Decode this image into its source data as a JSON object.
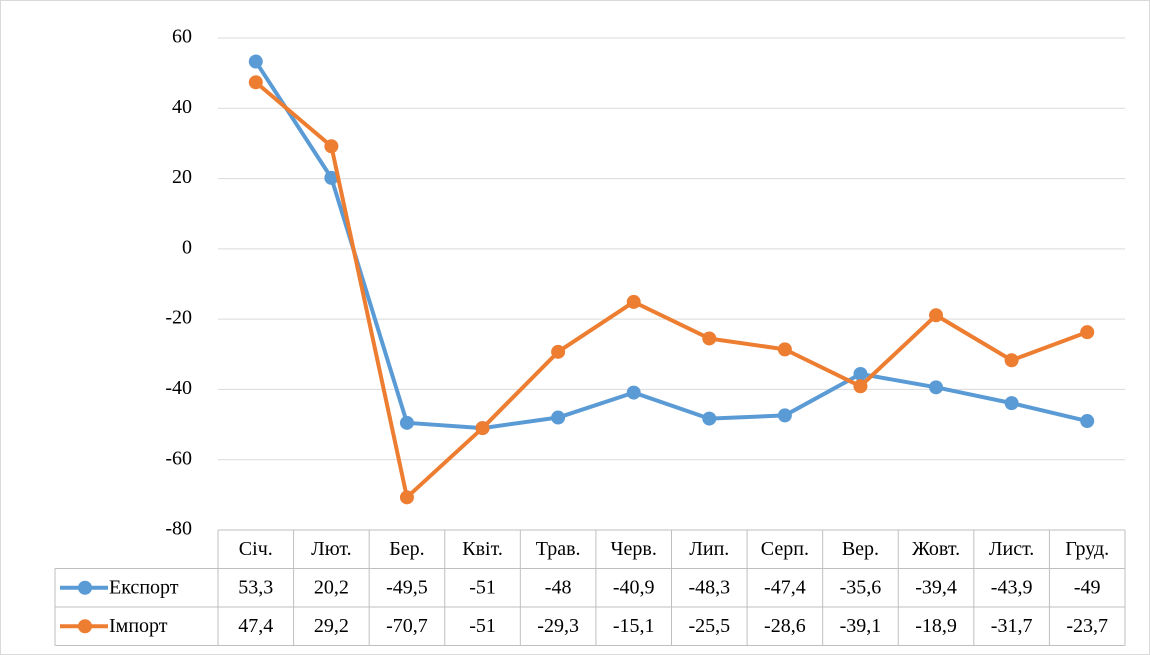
{
  "chart_data": {
    "type": "line",
    "categories": [
      "Січ.",
      "Лют.",
      "Бер.",
      "Квіт.",
      "Трав.",
      "Черв.",
      "Лип.",
      "Серп.",
      "Вер.",
      "Жовт.",
      "Лист.",
      "Груд."
    ],
    "series": [
      {
        "name": "Експорт",
        "color": "#5b9bd5",
        "values": [
          53.3,
          20.2,
          -49.5,
          -51,
          -48,
          -40.9,
          -48.3,
          -47.4,
          -35.6,
          -39.4,
          -43.9,
          -49
        ],
        "value_labels": [
          "53,3",
          "20,2",
          "-49,5",
          "-51",
          "-48",
          "-40,9",
          "-48,3",
          "-47,4",
          "-35,6",
          "-39,4",
          "-43,9",
          "-49"
        ]
      },
      {
        "name": "Імпорт",
        "color": "#ed7d31",
        "values": [
          47.4,
          29.2,
          -70.7,
          -51,
          -29.3,
          -15.1,
          -25.5,
          -28.6,
          -39.1,
          -18.9,
          -31.7,
          -23.7
        ],
        "value_labels": [
          "47,4",
          "29,2",
          "-70,7",
          "-51",
          "-29,3",
          "-15,1",
          "-25,5",
          "-28,6",
          "-39,1",
          "-18,9",
          "-31,7",
          "-23,7"
        ]
      }
    ],
    "ylim": [
      -80,
      60
    ],
    "yticks": [
      -80,
      -60,
      -40,
      -20,
      0,
      20,
      40,
      60
    ],
    "grid": true
  }
}
